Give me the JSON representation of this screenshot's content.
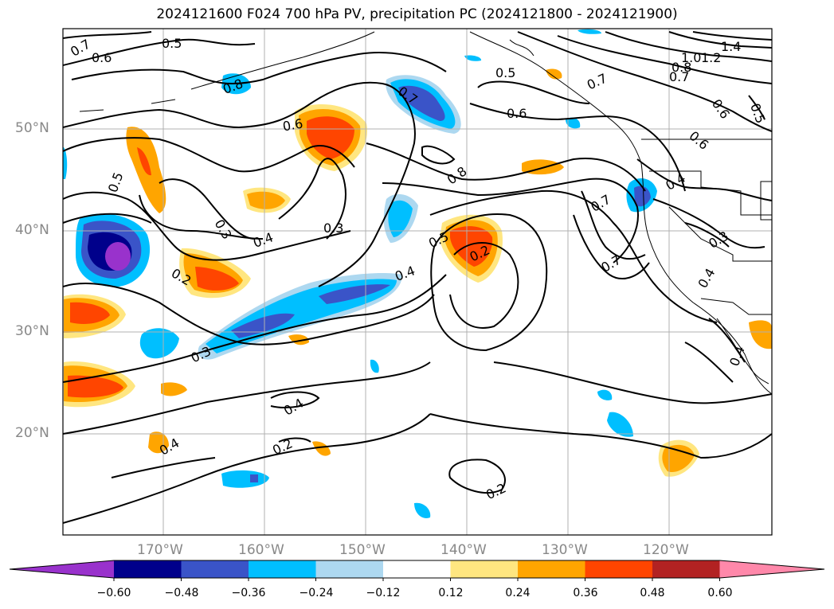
{
  "title": "2024121600 F024 700 hPa PV, precipitation PC (2024121800 - 2024121900)",
  "lon_labels": [
    "170°W",
    "160°W",
    "150°W",
    "140°W",
    "130°W",
    "120°W"
  ],
  "lat_labels": [
    "50°N",
    "40°N",
    "30°N",
    "20°N"
  ],
  "colorbar": {
    "ticks": [
      "−0.60",
      "−0.48",
      "−0.36",
      "−0.24",
      "−0.12",
      "0.12",
      "0.24",
      "0.36",
      "0.48",
      "0.60"
    ],
    "colors": [
      "#9932cc",
      "#00008b",
      "#3a54c8",
      "#00bfff",
      "#add8f0",
      "#ffffff",
      "#ffe680",
      "#ffa500",
      "#ff4500",
      "#b22222",
      "#ff88aa"
    ]
  },
  "contour_labels": [
    "0.7",
    "0.6",
    "0.5",
    "0.8",
    "0.7",
    "0.5",
    "0.6",
    "0.7",
    "1.4",
    "1.2",
    "1.0",
    "0.8",
    "0.7",
    "0.6",
    "0.5",
    "0.6",
    "0.5",
    "0.8",
    "0.3",
    "0.3",
    "0.4",
    "0.7",
    "0.7",
    "0.4",
    "0.3",
    "0.4",
    "0.5",
    "0.2",
    "0.4",
    "0.2",
    "0.3",
    "0.4",
    "0.4",
    "0.2",
    "0.2",
    "0.4",
    "0.6"
  ],
  "colors": {
    "grid": "#b0b0b0",
    "contour": "#000000",
    "coast": "#000000"
  }
}
